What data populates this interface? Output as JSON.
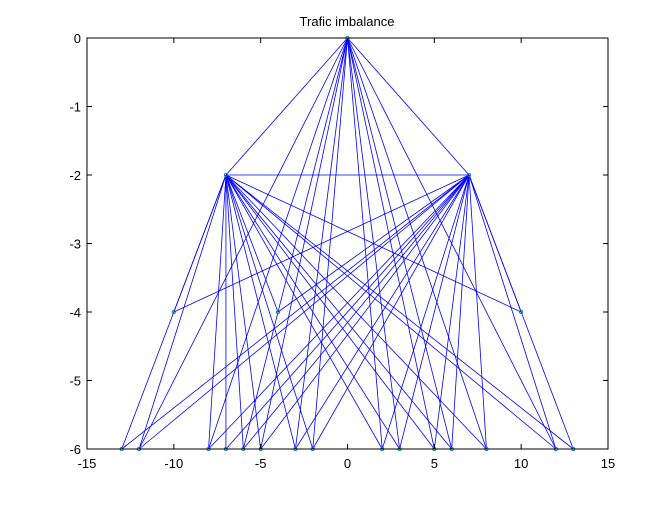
{
  "chart_data": {
    "type": "line",
    "title": "Trafic imbalance",
    "xlabel": "",
    "ylabel": "",
    "xlim": [
      -15,
      15
    ],
    "ylim": [
      -6,
      0
    ],
    "xticks": [
      -15,
      -10,
      -5,
      0,
      5,
      10,
      15
    ],
    "yticks": [
      0,
      -1,
      -2,
      -3,
      -4,
      -5,
      -6
    ],
    "xtick_labels": [
      "-15",
      "-10",
      "-5",
      "0",
      "5",
      "10",
      "15"
    ],
    "ytick_labels": [
      "0",
      "-1",
      "-2",
      "-3",
      "-4",
      "-5",
      "-6"
    ],
    "grid": false,
    "box": true,
    "line_color": "#0000ff",
    "marker_color": "#008080",
    "nodes": [
      {
        "x": 0,
        "y": 0
      },
      {
        "x": -7,
        "y": -2
      },
      {
        "x": 7,
        "y": -2
      },
      {
        "x": -10,
        "y": -4
      },
      {
        "x": -4,
        "y": -4
      },
      {
        "x": 10,
        "y": -4
      },
      {
        "x": -13,
        "y": -6
      },
      {
        "x": -12,
        "y": -6
      },
      {
        "x": -8,
        "y": -6
      },
      {
        "x": -7,
        "y": -6
      },
      {
        "x": -6,
        "y": -6
      },
      {
        "x": -5,
        "y": -6
      },
      {
        "x": -3,
        "y": -6
      },
      {
        "x": -2,
        "y": -6
      },
      {
        "x": 2,
        "y": -6
      },
      {
        "x": 3,
        "y": -6
      },
      {
        "x": 5,
        "y": -6
      },
      {
        "x": 6,
        "y": -6
      },
      {
        "x": 8,
        "y": -6
      },
      {
        "x": 12,
        "y": -6
      },
      {
        "x": 13,
        "y": -6
      }
    ],
    "edges": [
      [
        0,
        1
      ],
      [
        0,
        2
      ],
      [
        1,
        2
      ],
      [
        0,
        7
      ],
      [
        0,
        8
      ],
      [
        0,
        10
      ],
      [
        0,
        11
      ],
      [
        0,
        12
      ],
      [
        0,
        13
      ],
      [
        0,
        14
      ],
      [
        0,
        15
      ],
      [
        0,
        16
      ],
      [
        0,
        17
      ],
      [
        0,
        18
      ],
      [
        0,
        19
      ],
      [
        1,
        3
      ],
      [
        1,
        4
      ],
      [
        1,
        6
      ],
      [
        1,
        7
      ],
      [
        1,
        8
      ],
      [
        1,
        9
      ],
      [
        1,
        10
      ],
      [
        1,
        11
      ],
      [
        1,
        12
      ],
      [
        1,
        13
      ],
      [
        1,
        14
      ],
      [
        1,
        15
      ],
      [
        1,
        16
      ],
      [
        1,
        17
      ],
      [
        1,
        18
      ],
      [
        1,
        19
      ],
      [
        1,
        20
      ],
      [
        1,
        5
      ],
      [
        2,
        3
      ],
      [
        2,
        4
      ],
      [
        2,
        5
      ],
      [
        2,
        6
      ],
      [
        2,
        7
      ],
      [
        2,
        8
      ],
      [
        2,
        9
      ],
      [
        2,
        10
      ],
      [
        2,
        11
      ],
      [
        2,
        12
      ],
      [
        2,
        13
      ],
      [
        2,
        14
      ],
      [
        2,
        15
      ],
      [
        2,
        16
      ],
      [
        2,
        17
      ],
      [
        2,
        18
      ],
      [
        2,
        19
      ],
      [
        2,
        20
      ]
    ]
  }
}
